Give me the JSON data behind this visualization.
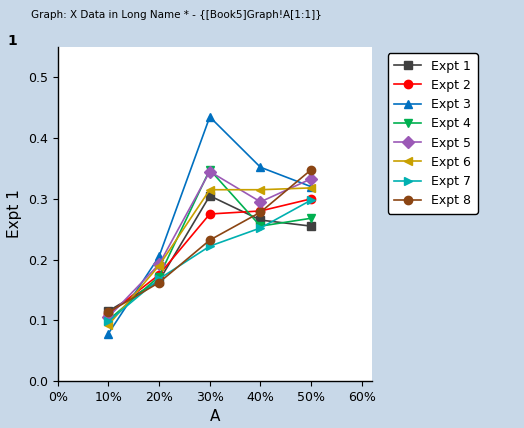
{
  "x": [
    0.1,
    0.2,
    0.3,
    0.4,
    0.5
  ],
  "series": [
    {
      "name": "Expt 1",
      "color": "#404040",
      "marker": "s",
      "values": [
        0.115,
        0.165,
        0.305,
        0.265,
        0.255
      ]
    },
    {
      "name": "Expt 2",
      "color": "#ff0000",
      "marker": "o",
      "values": [
        0.11,
        0.175,
        0.275,
        0.28,
        0.3
      ]
    },
    {
      "name": "Expt 3",
      "color": "#0070c0",
      "marker": "^",
      "values": [
        0.078,
        0.205,
        0.435,
        0.352,
        0.32
      ]
    },
    {
      "name": "Expt 4",
      "color": "#00b050",
      "marker": "v",
      "values": [
        0.1,
        0.172,
        0.348,
        0.255,
        0.268
      ]
    },
    {
      "name": "Expt 5",
      "color": "#9b59b6",
      "marker": "D",
      "values": [
        0.105,
        0.192,
        0.345,
        0.295,
        0.333
      ]
    },
    {
      "name": "Expt 6",
      "color": "#c8a000",
      "marker": "<",
      "values": [
        0.092,
        0.19,
        0.315,
        0.315,
        0.318
      ]
    },
    {
      "name": "Expt 7",
      "color": "#00b0b0",
      "marker": ">",
      "values": [
        0.098,
        0.168,
        0.222,
        0.252,
        0.298
      ]
    },
    {
      "name": "Expt 8",
      "color": "#8b4513",
      "marker": "o",
      "values": [
        0.113,
        0.162,
        0.232,
        0.278,
        0.348
      ]
    }
  ],
  "xlabel": "A",
  "ylabel": "Expt 1",
  "xlim": [
    0.0,
    0.62
  ],
  "ylim": [
    0.0,
    0.55
  ],
  "yticks": [
    0.0,
    0.1,
    0.2,
    0.3,
    0.4,
    0.5
  ],
  "xticks": [
    0.0,
    0.1,
    0.2,
    0.3,
    0.4,
    0.5,
    0.6
  ],
  "bg_color": "#c8d8e8",
  "plot_bg_color": "#ffffff",
  "title_bar": "Graph: X Data in Long Name * - {[Book5]Graph!A[1:1]}",
  "legend_fontsize": 9,
  "axis_fontsize": 11,
  "marker_size": 6,
  "linewidth": 1.2
}
